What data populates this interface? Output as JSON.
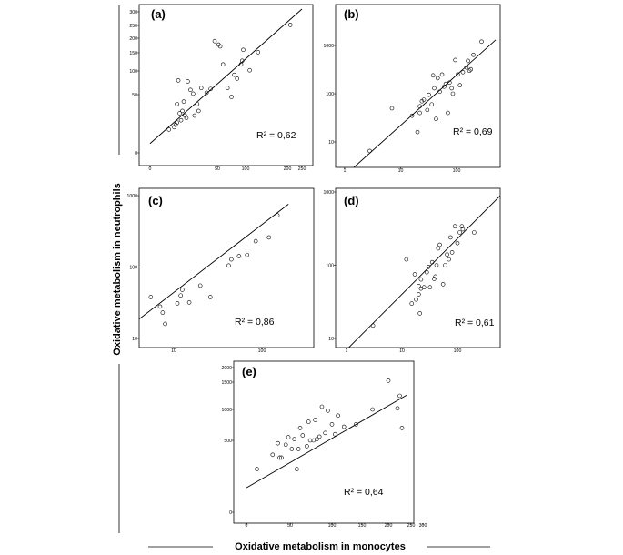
{
  "figure": {
    "ylabel": "Oxidative metabolism in neutrophils",
    "xlabel": "Oxidative metabolism in monocytes"
  },
  "chart_data": [
    {
      "type": "scatter",
      "panel": "(a)",
      "r2": "R² = 0,62",
      "x_scale": "custom",
      "y_scale": "custom",
      "x_ticks": [
        "0",
        "50",
        "100",
        "200",
        "250"
      ],
      "y_ticks": [
        "0",
        "50",
        "100",
        "150",
        "200",
        "250",
        "300"
      ],
      "x": [
        14,
        18,
        19,
        20,
        20,
        22,
        21,
        24,
        23,
        25,
        26,
        27,
        28,
        30,
        32,
        33,
        35,
        36,
        38,
        42,
        45,
        48,
        52,
        55,
        60,
        68,
        75,
        80,
        85,
        92,
        94,
        96,
        110,
        130,
        210
      ],
      "y": [
        20,
        22,
        24,
        26,
        42,
        34,
        80,
        36,
        28,
        44,
        32,
        30,
        78,
        60,
        52,
        32,
        42,
        36,
        64,
        54,
        62,
        190,
        178,
        172,
        118,
        64,
        48,
        92,
        84,
        118,
        128,
        160,
        102,
        152,
        252
      ],
      "fit": {
        "x": [
          0,
          250
        ],
        "y": [
          8,
          310
        ]
      }
    },
    {
      "type": "scatter",
      "panel": "(b)",
      "r2": "R² = 0,69",
      "x_scale": "log",
      "y_scale": "log",
      "x_ticks": [
        "1",
        "10",
        "100"
      ],
      "y_ticks": [
        "10",
        "100",
        "1000"
      ],
      "x": [
        2.8,
        7,
        16,
        20,
        22,
        22,
        24,
        26,
        30,
        32,
        36,
        38,
        40,
        43,
        46,
        50,
        55,
        60,
        64,
        70,
        75,
        82,
        86,
        95,
        105,
        115,
        130,
        150,
        160,
        170,
        180,
        200,
        280
      ],
      "y": [
        6.5,
        50,
        35,
        16,
        55,
        40,
        70,
        75,
        46,
        95,
        60,
        240,
        130,
        30,
        210,
        110,
        250,
        140,
        160,
        40,
        170,
        130,
        100,
        500,
        250,
        150,
        280,
        350,
        480,
        300,
        320,
        640,
        1200
      ],
      "fit": {
        "x": [
          1,
          500
        ],
        "y": [
          2,
          1300
        ]
      }
    },
    {
      "type": "scatter",
      "panel": "(c)",
      "r2": "R² = 0,86",
      "x_scale": "log",
      "y_scale": "log",
      "x_ticks": [
        "10",
        "100"
      ],
      "y_ticks": [
        "10",
        "100",
        "1000"
      ],
      "x": [
        5.5,
        7,
        7.5,
        8,
        11,
        12,
        12.5,
        15,
        20,
        26,
        42,
        45,
        55,
        68,
        85,
        120,
        150
      ],
      "y": [
        38,
        28,
        23,
        16,
        31,
        40,
        48,
        32,
        55,
        38,
        105,
        128,
        142,
        148,
        230,
        260,
        530
      ],
      "fit": {
        "x": [
          3,
          200
        ],
        "y": [
          14,
          760
        ]
      }
    },
    {
      "type": "scatter",
      "panel": "(d)",
      "r2": "R² = 0,61",
      "x_scale": "log",
      "y_scale": "log",
      "x_ticks": [
        "1",
        "10",
        "100"
      ],
      "y_ticks": [
        "10",
        "100",
        "1000"
      ],
      "x": [
        3,
        12,
        15,
        17,
        18,
        20,
        20,
        21,
        22,
        22,
        25,
        28,
        30,
        32,
        35,
        38,
        40,
        42,
        45,
        48,
        55,
        60,
        65,
        70,
        75,
        80,
        90,
        100,
        110,
        120,
        125,
        200
      ],
      "y": [
        15,
        120,
        30,
        75,
        34,
        40,
        52,
        22,
        64,
        48,
        50,
        80,
        95,
        50,
        110,
        65,
        70,
        100,
        170,
        190,
        55,
        100,
        140,
        120,
        240,
        150,
        340,
        200,
        280,
        340,
        310,
        280
      ],
      "fit": {
        "x": [
          1,
          600
        ],
        "y": [
          7,
          900
        ]
      }
    },
    {
      "type": "scatter",
      "panel": "(e)",
      "r2": "R² = 0,64",
      "x_scale": "custom",
      "y_scale": "custom",
      "x_ticks": [
        "0",
        "50",
        "100",
        "150",
        "200",
        "250",
        "300"
      ],
      "y_ticks": [
        "0",
        "500",
        "1000",
        "1500",
        "2000"
      ],
      "x": [
        12,
        30,
        36,
        38,
        40,
        45,
        48,
        52,
        55,
        58,
        60,
        62,
        65,
        70,
        72,
        74,
        78,
        80,
        82,
        85,
        88,
        92,
        95,
        100,
        105,
        110,
        120,
        140,
        170,
        200,
        220,
        225,
        230
      ],
      "y": [
        300,
        400,
        480,
        380,
        380,
        470,
        550,
        440,
        520,
        300,
        440,
        700,
        580,
        460,
        800,
        500,
        500,
        830,
        520,
        560,
        1050,
        620,
        980,
        760,
        600,
        900,
        720,
        760,
        1000,
        1550,
        1020,
        1250,
        700
      ],
      "fit": {
        "x": [
          0,
          240
        ],
        "y": [
          170,
          1260
        ]
      }
    }
  ]
}
